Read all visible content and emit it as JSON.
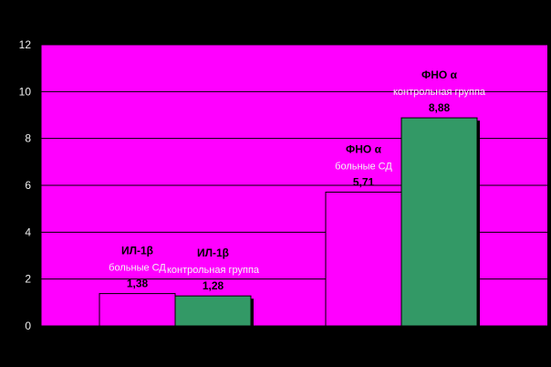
{
  "colors": {
    "frame": "#000000",
    "plot_area": "#ff00ff",
    "gridline": "#000000",
    "axis": "#000000",
    "series_1": "#ff00ff",
    "series_2": "#339966",
    "bar_outline": "#000000",
    "tick_text": "#f0f0f0"
  },
  "chart_data": {
    "type": "bar",
    "ylim": [
      0,
      12
    ],
    "yticks": [
      0,
      2,
      4,
      6,
      8,
      10,
      12
    ],
    "grid": true,
    "legend": "none",
    "groups": [
      {
        "bars": [
          {
            "series": 1,
            "value": 1.38,
            "label": [
              "ИЛ-1β",
              "больные СД",
              "1,38"
            ]
          },
          {
            "series": 2,
            "value": 1.28,
            "label": [
              "ИЛ-1β",
              "контрольная группа",
              "1,28"
            ]
          }
        ]
      },
      {
        "bars": [
          {
            "series": 1,
            "value": 5.71,
            "label": [
              "ФНО α",
              "больные СД",
              "5,71"
            ]
          },
          {
            "series": 2,
            "value": 8.88,
            "label": [
              "ФНО α",
              "контрольная группа",
              "8,88"
            ]
          }
        ]
      }
    ]
  }
}
